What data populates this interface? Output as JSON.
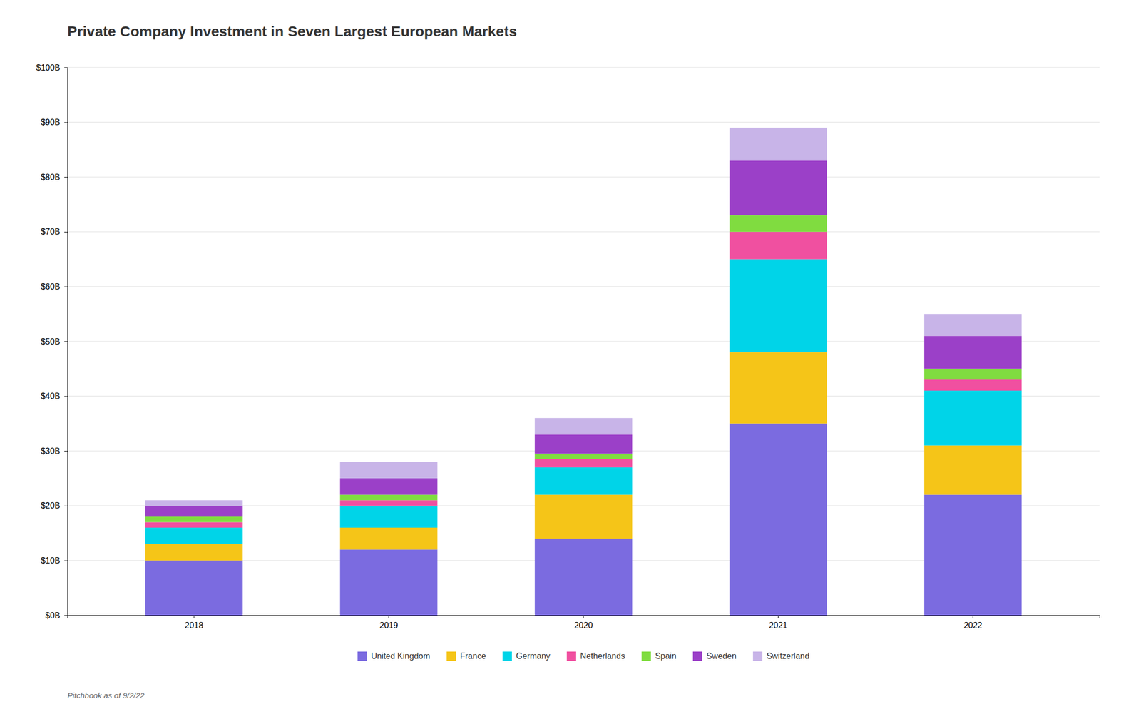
{
  "chart_data": {
    "type": "bar",
    "title": "Private Company Investment in Seven Largest European Markets",
    "categories": [
      "2018",
      "2019",
      "2020",
      "2021",
      "2022"
    ],
    "series": [
      {
        "name": "United Kingdom",
        "color": "#7B6BE0",
        "values": [
          10,
          12,
          14,
          35,
          22
        ]
      },
      {
        "name": "France",
        "color": "#F5C518",
        "values": [
          3,
          4,
          8,
          13,
          9
        ]
      },
      {
        "name": "Germany",
        "color": "#00D4E8",
        "values": [
          3,
          4,
          5,
          17,
          10
        ]
      },
      {
        "name": "Netherlands",
        "color": "#F050A0",
        "values": [
          1,
          1,
          1.5,
          5,
          2
        ]
      },
      {
        "name": "Spain",
        "color": "#80DC40",
        "values": [
          1,
          1,
          1,
          3,
          2
        ]
      },
      {
        "name": "Sweden",
        "color": "#9B40C8",
        "values": [
          2,
          3,
          3.5,
          10,
          6
        ]
      },
      {
        "name": "Switzerland",
        "color": "#C8B4E8",
        "values": [
          1,
          3,
          3,
          6,
          4
        ]
      }
    ],
    "stacked": true,
    "ylim": [
      0,
      100
    ],
    "yticks": [
      {
        "value": 0,
        "label": "$0B"
      },
      {
        "value": 10,
        "label": "$10B"
      },
      {
        "value": 20,
        "label": "$20B"
      },
      {
        "value": 30,
        "label": "$30B"
      },
      {
        "value": 40,
        "label": "$40B"
      },
      {
        "value": 50,
        "label": "$50B"
      },
      {
        "value": 60,
        "label": "$60B"
      },
      {
        "value": 70,
        "label": "$70B"
      },
      {
        "value": 80,
        "label": "$80B"
      },
      {
        "value": 90,
        "label": "$90B"
      },
      {
        "value": 100,
        "label": "$100B"
      }
    ],
    "grid": true,
    "legend": "bottom",
    "annotation": "Pitchbook as of 9/2/22"
  }
}
